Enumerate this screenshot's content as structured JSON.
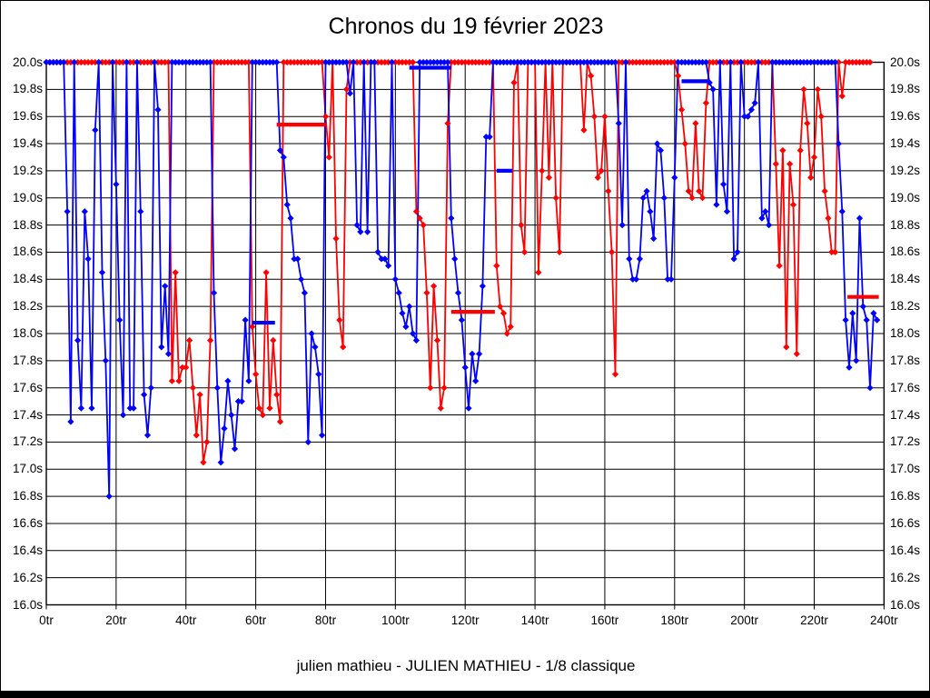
{
  "chart_data": {
    "type": "line",
    "title": "Chronos du 19 février 2023",
    "x_unit": "tr",
    "y_unit": "s",
    "x_range": [
      0,
      240
    ],
    "x_step": 20,
    "y_range": [
      16.0,
      20.0
    ],
    "y_step": 0.2,
    "cap_value": 20.0,
    "grid": "on",
    "y_tick_labels": [
      "20.0s",
      "19.8s",
      "19.6s",
      "19.4s",
      "19.2s",
      "19.0s",
      "18.8s",
      "18.6s",
      "18.4s",
      "18.2s",
      "18.0s",
      "17.8s",
      "17.6s",
      "17.4s",
      "17.2s",
      "17.0s",
      "16.8s",
      "16.6s",
      "16.4s",
      "16.2s",
      "16.0s"
    ],
    "x_tick_labels": [
      "0tr",
      "20tr",
      "40tr",
      "60tr",
      "80tr",
      "100tr",
      "120tr",
      "140tr",
      "160tr",
      "180tr",
      "200tr",
      "220tr",
      "240tr"
    ],
    "series": [
      {
        "name": "driver-red",
        "color": "#ff0000",
        "start_lap": 0,
        "lap_times": [
          20,
          20,
          20,
          20,
          20,
          20,
          20,
          20,
          20,
          20,
          20,
          20,
          20,
          20,
          20,
          20,
          20,
          20,
          20,
          20,
          20,
          20,
          20,
          20,
          20,
          20,
          20,
          20,
          20,
          20,
          20,
          20,
          20,
          20,
          20,
          20,
          17.65,
          18.45,
          17.65,
          17.75,
          17.75,
          17.95,
          17.6,
          17.25,
          17.55,
          17.05,
          17.2,
          17.95,
          20,
          20,
          20,
          20,
          20,
          20,
          20,
          20,
          20,
          20,
          20,
          18.05,
          17.7,
          17.45,
          17.4,
          18.45,
          17.45,
          17.95,
          17.55,
          17.35,
          20,
          20,
          20,
          20,
          20,
          20,
          20,
          20,
          20,
          20,
          20,
          20,
          19.6,
          19.3,
          20,
          18.7,
          18.1,
          17.9,
          19.8,
          20,
          20,
          20,
          20,
          20,
          20,
          20,
          20,
          20,
          20,
          20,
          20,
          20,
          20,
          20,
          20,
          20,
          20,
          20,
          18.9,
          18.85,
          18.8,
          18.3,
          17.6,
          18.35,
          17.95,
          17.45,
          17.6,
          19.55,
          20,
          20,
          20,
          20,
          20,
          20,
          20,
          20,
          20,
          20,
          20,
          20,
          20,
          18.5,
          18.2,
          18.15,
          18.0,
          18.05,
          19.85,
          20,
          18.8,
          18.6,
          20,
          20,
          20,
          18.45,
          19.2,
          20,
          19.15,
          20,
          19.0,
          18.6,
          20,
          20,
          20,
          20,
          20,
          20,
          19.5,
          20,
          19.9,
          19.6,
          19.15,
          19.2,
          19.6,
          19.05,
          18.6,
          17.7,
          20,
          20,
          20,
          20,
          20,
          20,
          20,
          20,
          20,
          20,
          20,
          20,
          20,
          20,
          20,
          20,
          20,
          19.9,
          19.65,
          19.4,
          19.05,
          19.0,
          19.55,
          19.05,
          19.0,
          19.7,
          20,
          20,
          20,
          20,
          20,
          20,
          20,
          20,
          20,
          20,
          20,
          20,
          20,
          20,
          20,
          20,
          20,
          20,
          20,
          19.25,
          18.5,
          19.35,
          17.9,
          19.25,
          18.95,
          17.85,
          19.35,
          19.8,
          19.55,
          19.15,
          19.3,
          19.8,
          19.6,
          19.05,
          18.85,
          18.6,
          18.6,
          20,
          19.75,
          20,
          20,
          20,
          20,
          20,
          20,
          20,
          20
        ]
      },
      {
        "name": "driver-blue",
        "color": "#0000ff",
        "start_lap": 0,
        "lap_times": [
          20,
          20,
          20,
          20,
          20,
          20,
          18.9,
          17.35,
          20,
          17.95,
          17.45,
          18.9,
          18.55,
          17.45,
          19.5,
          20,
          18.45,
          17.8,
          16.8,
          20,
          19.1,
          18.1,
          17.4,
          20,
          17.45,
          17.45,
          20,
          18.9,
          17.55,
          17.25,
          17.6,
          20,
          19.65,
          17.9,
          18.35,
          17.85,
          20,
          20,
          20,
          20,
          20,
          20,
          20,
          20,
          20,
          20,
          20,
          20,
          18.3,
          17.6,
          17.05,
          17.3,
          17.65,
          17.4,
          17.15,
          17.5,
          17.5,
          18.1,
          17.65,
          20,
          20,
          20,
          20,
          20,
          20,
          20,
          20,
          19.35,
          19.3,
          18.95,
          18.85,
          18.55,
          18.55,
          18.4,
          18.3,
          17.2,
          18.0,
          17.9,
          17.7,
          17.25,
          20,
          20,
          20,
          20,
          20,
          20,
          20,
          19.77,
          20,
          18.8,
          18.75,
          20,
          18.75,
          20,
          20,
          18.6,
          18.55,
          18.55,
          18.5,
          20,
          18.4,
          18.3,
          18.15,
          18.05,
          18.2,
          18.0,
          17.95,
          20,
          20,
          20,
          20,
          20,
          20,
          20,
          20,
          20,
          18.85,
          18.55,
          18.3,
          18.1,
          17.75,
          17.45,
          17.85,
          17.65,
          17.85,
          18.35,
          19.45,
          19.45,
          20,
          20,
          20,
          20,
          20,
          20,
          20,
          20,
          20,
          20,
          20,
          20,
          20,
          20,
          20,
          20,
          20,
          20,
          20,
          20,
          20,
          20,
          20,
          20,
          20,
          20,
          20,
          20,
          20,
          20,
          20,
          20,
          20,
          20,
          20,
          20,
          19.55,
          18.8,
          20,
          18.55,
          18.4,
          18.4,
          18.55,
          19.0,
          19.05,
          18.9,
          18.7,
          19.4,
          19.35,
          19.0,
          18.4,
          18.4,
          19.15,
          20,
          20,
          20,
          20,
          20,
          20,
          20,
          20,
          20,
          19.85,
          19.8,
          18.95,
          20,
          19.1,
          18.9,
          20,
          18.55,
          18.6,
          20,
          19.6,
          19.6,
          19.65,
          19.7,
          20,
          18.85,
          18.9,
          18.8,
          20,
          20,
          20,
          20,
          20,
          20,
          20,
          20,
          20,
          20,
          20,
          20,
          20,
          20,
          20,
          20,
          20,
          20,
          20,
          19.4,
          18.9,
          18.1,
          17.75,
          18.15,
          17.8,
          18.85,
          18.2,
          18.1,
          17.6,
          18.15,
          18.1
        ]
      }
    ],
    "avg_bars": [
      {
        "series": "driver-blue",
        "color": "#0000ff",
        "from_lap": 59,
        "to_lap": 65.5,
        "value": 18.08
      },
      {
        "series": "driver-red",
        "color": "#ff0000",
        "from_lap": 66,
        "to_lap": 80,
        "value": 19.54
      },
      {
        "series": "driver-blue",
        "color": "#0000ff",
        "from_lap": 104,
        "to_lap": 116,
        "value": 19.96
      },
      {
        "series": "driver-red",
        "color": "#ff0000",
        "from_lap": 116,
        "to_lap": 128.5,
        "value": 18.16
      },
      {
        "series": "driver-blue",
        "color": "#0000ff",
        "from_lap": 129,
        "to_lap": 133.5,
        "value": 19.2
      },
      {
        "series": "driver-blue",
        "color": "#0000ff",
        "from_lap": 182,
        "to_lap": 189.5,
        "value": 19.86
      },
      {
        "series": "driver-red",
        "color": "#ff0000",
        "from_lap": 229.5,
        "to_lap": 238.5,
        "value": 18.27
      }
    ]
  },
  "footer": {
    "text": "julien mathieu - JULIEN MATHIEU - 1/8 classique"
  }
}
